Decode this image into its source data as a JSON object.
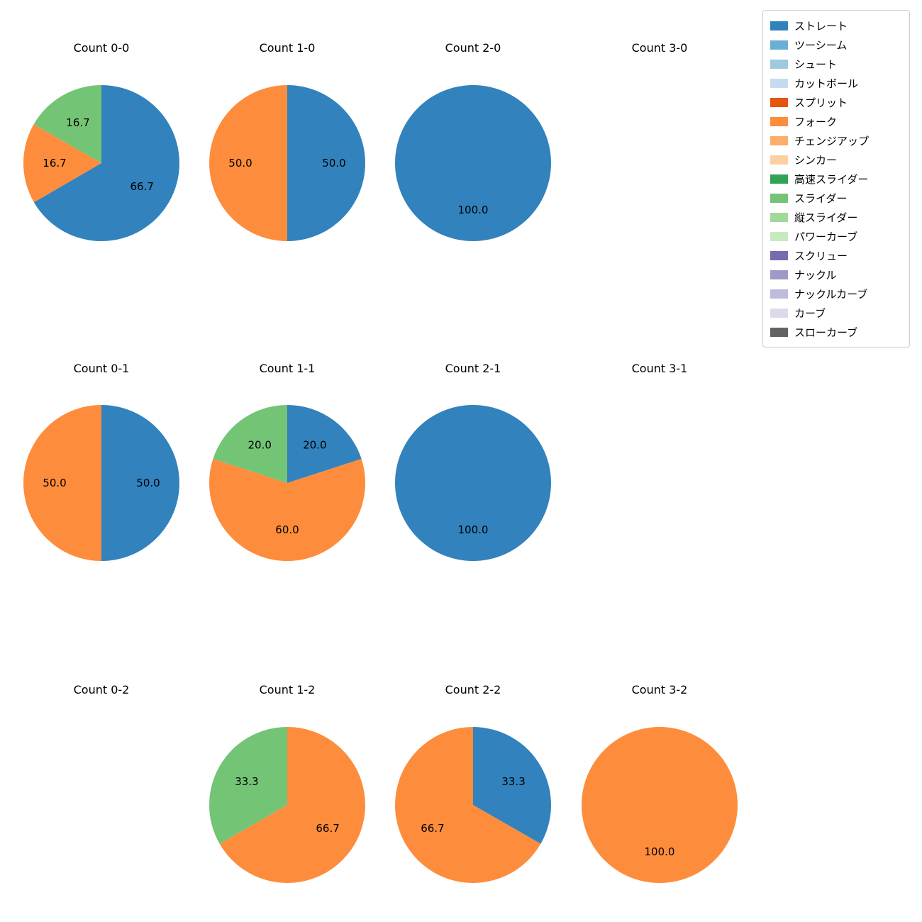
{
  "figure": {
    "background": "#ffffff",
    "pie_style": {
      "start_angle": 90,
      "direction": "clockwise",
      "label_distance": 0.6
    }
  },
  "legend": {
    "position": "top-right",
    "items": [
      {
        "label": "ストレート",
        "color": "#3182bd"
      },
      {
        "label": "ツーシーム",
        "color": "#6baed6"
      },
      {
        "label": "シュート",
        "color": "#9ecae1"
      },
      {
        "label": "カットボール",
        "color": "#c6dbef"
      },
      {
        "label": "スプリット",
        "color": "#e6550d"
      },
      {
        "label": "フォーク",
        "color": "#fd8d3c"
      },
      {
        "label": "チェンジアップ",
        "color": "#fdae6b"
      },
      {
        "label": "シンカー",
        "color": "#fdd0a2"
      },
      {
        "label": "高速スライダー",
        "color": "#31a354"
      },
      {
        "label": "スライダー",
        "color": "#74c476"
      },
      {
        "label": "縦スライダー",
        "color": "#a1d99b"
      },
      {
        "label": "パワーカーブ",
        "color": "#c7e9c0"
      },
      {
        "label": "スクリュー",
        "color": "#756bb1"
      },
      {
        "label": "ナックル",
        "color": "#9e9ac8"
      },
      {
        "label": "ナックルカーブ",
        "color": "#bcbddc"
      },
      {
        "label": "カーブ",
        "color": "#dadaeb"
      },
      {
        "label": "スローカーブ",
        "color": "#636363"
      }
    ]
  },
  "chart_data": [
    {
      "type": "pie",
      "title": "Count 0-0",
      "slices": [
        {
          "name": "ストレート",
          "value": 66.7,
          "text": "66.7"
        },
        {
          "name": "フォーク",
          "value": 16.7,
          "text": "16.7"
        },
        {
          "name": "スライダー",
          "value": 16.7,
          "text": "16.7"
        }
      ]
    },
    {
      "type": "pie",
      "title": "Count 1-0",
      "slices": [
        {
          "name": "ストレート",
          "value": 50.0,
          "text": "50.0"
        },
        {
          "name": "フォーク",
          "value": 50.0,
          "text": "50.0"
        }
      ]
    },
    {
      "type": "pie",
      "title": "Count 2-0",
      "slices": [
        {
          "name": "ストレート",
          "value": 100.0,
          "text": "100.0"
        }
      ]
    },
    {
      "type": "pie",
      "title": "Count 3-0",
      "slices": []
    },
    {
      "type": "pie",
      "title": "Count 0-1",
      "slices": [
        {
          "name": "ストレート",
          "value": 50.0,
          "text": "50.0"
        },
        {
          "name": "フォーク",
          "value": 50.0,
          "text": "50.0"
        }
      ]
    },
    {
      "type": "pie",
      "title": "Count 1-1",
      "slices": [
        {
          "name": "ストレート",
          "value": 20.0,
          "text": "20.0"
        },
        {
          "name": "フォーク",
          "value": 60.0,
          "text": "60.0"
        },
        {
          "name": "スライダー",
          "value": 20.0,
          "text": "20.0"
        }
      ]
    },
    {
      "type": "pie",
      "title": "Count 2-1",
      "slices": [
        {
          "name": "ストレート",
          "value": 100.0,
          "text": "100.0"
        }
      ]
    },
    {
      "type": "pie",
      "title": "Count 3-1",
      "slices": []
    },
    {
      "type": "pie",
      "title": "Count 0-2",
      "slices": []
    },
    {
      "type": "pie",
      "title": "Count 1-2",
      "slices": [
        {
          "name": "フォーク",
          "value": 66.7,
          "text": "66.7"
        },
        {
          "name": "スライダー",
          "value": 33.3,
          "text": "33.3"
        }
      ]
    },
    {
      "type": "pie",
      "title": "Count 2-2",
      "slices": [
        {
          "name": "ストレート",
          "value": 33.3,
          "text": "33.3"
        },
        {
          "name": "フォーク",
          "value": 66.7,
          "text": "66.7"
        }
      ]
    },
    {
      "type": "pie",
      "title": "Count 3-2",
      "slices": [
        {
          "name": "フォーク",
          "value": 100.0,
          "text": "100.0"
        }
      ]
    }
  ]
}
